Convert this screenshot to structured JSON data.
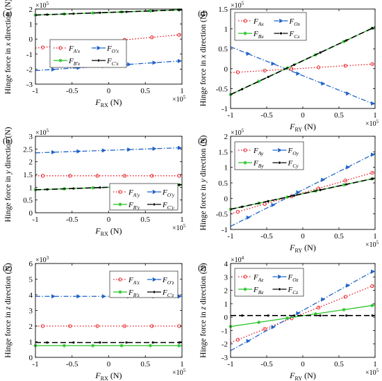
{
  "figure": {
    "ylabel_common": "Hinge force in",
    "ylabel_unit": "(N)",
    "colors": {
      "red": "#e8141c",
      "blue": "#1f63c8",
      "green": "#22c322",
      "black": "#000000"
    }
  },
  "chart_data": [
    {
      "panel": "(a)",
      "type": "line",
      "xlabel_main": "F",
      "xlabel_sub": "RX",
      "xlabel_unit": " (N)",
      "ylabel_dir": "x",
      "x_exponent": "5",
      "y_exponent": "5",
      "xlim": [
        -1,
        1
      ],
      "ylim": [
        -3,
        2
      ],
      "xticks": [
        -1,
        -0.5,
        0,
        0.5,
        1
      ],
      "xtick_labels": [
        "-1",
        "-0.5",
        "0",
        "0.5",
        "1"
      ],
      "yticks": [
        -3,
        -2,
        -1,
        0,
        1,
        2
      ],
      "ytick_labels": [
        "-3",
        "-2",
        "-1",
        "0",
        "1",
        "2"
      ],
      "legend": {
        "position": "middle-left"
      },
      "series": [
        {
          "name": "F",
          "sub": "A'x",
          "color": "#e8141c",
          "style": "dotted",
          "marker": "circle",
          "x": [
            -1,
            1
          ],
          "y": [
            -0.6,
            0.3
          ]
        },
        {
          "name": "F",
          "sub": "O'x",
          "color": "#1f63c8",
          "style": "dashdot",
          "marker": "triangle",
          "x": [
            -1,
            1
          ],
          "y": [
            -2.1,
            -1.45
          ]
        },
        {
          "name": "F",
          "sub": "B'x",
          "color": "#22c322",
          "style": "solid",
          "marker": "star",
          "x": [
            -1,
            1
          ],
          "y": [
            1.6,
            1.95
          ]
        },
        {
          "name": "F",
          "sub": "C'x",
          "color": "#000000",
          "style": "dashed",
          "marker": "dot",
          "x": [
            -1,
            1
          ],
          "y": [
            1.6,
            1.95
          ]
        }
      ]
    },
    {
      "panel": "(b)",
      "type": "line",
      "xlabel_main": "F",
      "xlabel_sub": "RX",
      "xlabel_unit": " (N)",
      "ylabel_dir": "y",
      "x_exponent": "5",
      "y_exponent": "5",
      "xlim": [
        -1,
        1
      ],
      "ylim": [
        0,
        3
      ],
      "xticks": [
        -1,
        -0.5,
        0,
        0.5,
        1
      ],
      "xtick_labels": [
        "-1",
        "-0.5",
        "0",
        "0.5",
        "1"
      ],
      "yticks": [
        0,
        0.5,
        1,
        1.5,
        2,
        2.5,
        3
      ],
      "ytick_labels": [
        "0",
        "0.5",
        "1",
        "1.5",
        "2",
        "2.5",
        "3"
      ],
      "legend": {
        "position": "lower-right"
      },
      "series": [
        {
          "name": "F",
          "sub": "A'y",
          "color": "#e8141c",
          "style": "dotted",
          "marker": "circle",
          "x": [
            -1,
            1
          ],
          "y": [
            1.45,
            1.45
          ]
        },
        {
          "name": "F",
          "sub": "O'y",
          "color": "#1f63c8",
          "style": "dashdot",
          "marker": "triangle",
          "x": [
            -1,
            1
          ],
          "y": [
            2.35,
            2.55
          ]
        },
        {
          "name": "F",
          "sub": "B'y",
          "color": "#22c322",
          "style": "solid",
          "marker": "star",
          "x": [
            -1,
            1
          ],
          "y": [
            0.9,
            1.1
          ]
        },
        {
          "name": "F",
          "sub": "C'y",
          "color": "#000000",
          "style": "dashed",
          "marker": "dot",
          "x": [
            -1,
            1
          ],
          "y": [
            0.9,
            1.1
          ]
        }
      ]
    },
    {
      "panel": "(c)",
      "type": "line",
      "xlabel_main": "F",
      "xlabel_sub": "RX",
      "xlabel_unit": " (N)",
      "ylabel_dir": "z",
      "x_exponent": "5",
      "y_exponent": "3",
      "xlim": [
        -1,
        1
      ],
      "ylim": [
        0,
        6
      ],
      "xticks": [
        -1,
        -0.5,
        0,
        0.5,
        1
      ],
      "xtick_labels": [
        "-1",
        "-0.5",
        "0",
        "0.5",
        "1"
      ],
      "yticks": [
        0,
        1,
        2,
        3,
        4,
        5,
        6
      ],
      "ytick_labels": [
        "0",
        "1",
        "2",
        "3",
        "4",
        "5",
        "6"
      ],
      "legend": {
        "position": "top-right"
      },
      "series": [
        {
          "name": "F",
          "sub": "A'z",
          "color": "#e8141c",
          "style": "dotted",
          "marker": "circle",
          "x": [
            -1,
            1
          ],
          "y": [
            2,
            2
          ]
        },
        {
          "name": "F",
          "sub": "O'z",
          "color": "#1f63c8",
          "style": "dashdot",
          "marker": "triangle",
          "x": [
            -1,
            1
          ],
          "y": [
            3.9,
            3.9
          ]
        },
        {
          "name": "F",
          "sub": "B'z",
          "color": "#22c322",
          "style": "solid",
          "marker": "star",
          "x": [
            -1,
            1
          ],
          "y": [
            0.75,
            0.75
          ]
        },
        {
          "name": "F",
          "sub": "C'z",
          "color": "#000000",
          "style": "dashed",
          "marker": "dot",
          "x": [
            -1,
            1
          ],
          "y": [
            0.95,
            0.95
          ]
        }
      ]
    },
    {
      "panel": "(d)",
      "type": "line",
      "xlabel_main": "F",
      "xlabel_sub": "RY",
      "xlabel_unit": " (N)",
      "ylabel_dir": "x",
      "x_exponent": "5",
      "y_exponent": "5",
      "xlim": [
        -1,
        1
      ],
      "ylim": [
        -1,
        1.5
      ],
      "xticks": [
        -1,
        -0.5,
        0,
        0.5,
        1
      ],
      "xtick_labels": [
        "-1",
        "-0.5",
        "0",
        "0.5",
        "1"
      ],
      "yticks": [
        -1,
        -0.5,
        0,
        0.5,
        1,
        1.5
      ],
      "ytick_labels": [
        "-1",
        "-0.5",
        "0",
        "0.5",
        "1",
        "1.5"
      ],
      "legend": {
        "position": "top-left"
      },
      "series": [
        {
          "name": "F",
          "sub": "Ax",
          "color": "#e8141c",
          "style": "dotted",
          "marker": "circle",
          "x": [
            -1,
            1
          ],
          "y": [
            -0.1,
            0.12
          ]
        },
        {
          "name": "F",
          "sub": "Ox",
          "color": "#1f63c8",
          "style": "dashdot",
          "marker": "triangle",
          "x": [
            -1,
            1
          ],
          "y": [
            0.55,
            -0.9
          ]
        },
        {
          "name": "F",
          "sub": "Bx",
          "color": "#22c322",
          "style": "solid",
          "marker": "star",
          "x": [
            -1,
            1
          ],
          "y": [
            -0.65,
            1.05
          ]
        },
        {
          "name": "F",
          "sub": "Cx",
          "color": "#000000",
          "style": "dashed",
          "marker": "dot",
          "x": [
            -1,
            1
          ],
          "y": [
            -0.65,
            1.05
          ]
        }
      ]
    },
    {
      "panel": "(e)",
      "type": "line",
      "xlabel_main": "F",
      "xlabel_sub": "RY",
      "xlabel_unit": " (N)",
      "ylabel_dir": "y",
      "x_exponent": "5",
      "y_exponent": "5",
      "xlim": [
        -1,
        1
      ],
      "ylim": [
        -1,
        2
      ],
      "xticks": [
        -1,
        -0.5,
        0,
        0.5,
        1
      ],
      "xtick_labels": [
        "-1",
        "-0.5",
        "0",
        "0.5",
        "1"
      ],
      "yticks": [
        -1,
        -0.5,
        0,
        0.5,
        1,
        1.5,
        2
      ],
      "ytick_labels": [
        "-1",
        "-0.5",
        "0",
        "0.5",
        "1",
        "1.5",
        "2"
      ],
      "legend": {
        "position": "top-left"
      },
      "series": [
        {
          "name": "F",
          "sub": "Ay",
          "color": "#e8141c",
          "style": "dotted",
          "marker": "circle",
          "x": [
            -1,
            1
          ],
          "y": [
            -0.5,
            0.85
          ]
        },
        {
          "name": "F",
          "sub": "Oy",
          "color": "#1f63c8",
          "style": "dashdot",
          "marker": "triangle",
          "x": [
            -1,
            1
          ],
          "y": [
            -0.9,
            1.45
          ]
        },
        {
          "name": "F",
          "sub": "By",
          "color": "#22c322",
          "style": "solid",
          "marker": "star",
          "x": [
            -1,
            1
          ],
          "y": [
            -0.35,
            0.65
          ]
        },
        {
          "name": "F",
          "sub": "Cy",
          "color": "#000000",
          "style": "dashed",
          "marker": "dot",
          "x": [
            -1,
            1
          ],
          "y": [
            -0.35,
            0.65
          ]
        }
      ]
    },
    {
      "panel": "(f)",
      "type": "line",
      "xlabel_main": "F",
      "xlabel_sub": "RY",
      "xlabel_unit": " (N)",
      "ylabel_dir": "z",
      "x_exponent": "5",
      "y_exponent": "4",
      "xlim": [
        -1,
        1
      ],
      "ylim": [
        -3,
        4
      ],
      "xticks": [
        -1,
        -0.5,
        0,
        0.5,
        1
      ],
      "xtick_labels": [
        "-1",
        "-0.5",
        "0",
        "0.5",
        "1"
      ],
      "yticks": [
        -3,
        -2,
        -1,
        0,
        1,
        2,
        3,
        4
      ],
      "ytick_labels": [
        "-3",
        "-2",
        "-1",
        "0",
        "1",
        "2",
        "3",
        "4"
      ],
      "legend": {
        "position": "top-left"
      },
      "series": [
        {
          "name": "F",
          "sub": "Az",
          "color": "#e8141c",
          "style": "dotted",
          "marker": "circle",
          "x": [
            -1,
            1
          ],
          "y": [
            -1.9,
            2.4
          ]
        },
        {
          "name": "F",
          "sub": "Oz",
          "color": "#1f63c8",
          "style": "dashdot",
          "marker": "triangle",
          "x": [
            -1,
            1
          ],
          "y": [
            -2.5,
            3.5
          ]
        },
        {
          "name": "F",
          "sub": "Bz",
          "color": "#22c322",
          "style": "solid",
          "marker": "star",
          "x": [
            -1,
            1
          ],
          "y": [
            -0.7,
            0.9
          ]
        },
        {
          "name": "F",
          "sub": "Cz",
          "color": "#000000",
          "style": "dashed",
          "marker": "dot",
          "x": [
            -1,
            1
          ],
          "y": [
            0.12,
            0.12
          ]
        }
      ]
    }
  ]
}
